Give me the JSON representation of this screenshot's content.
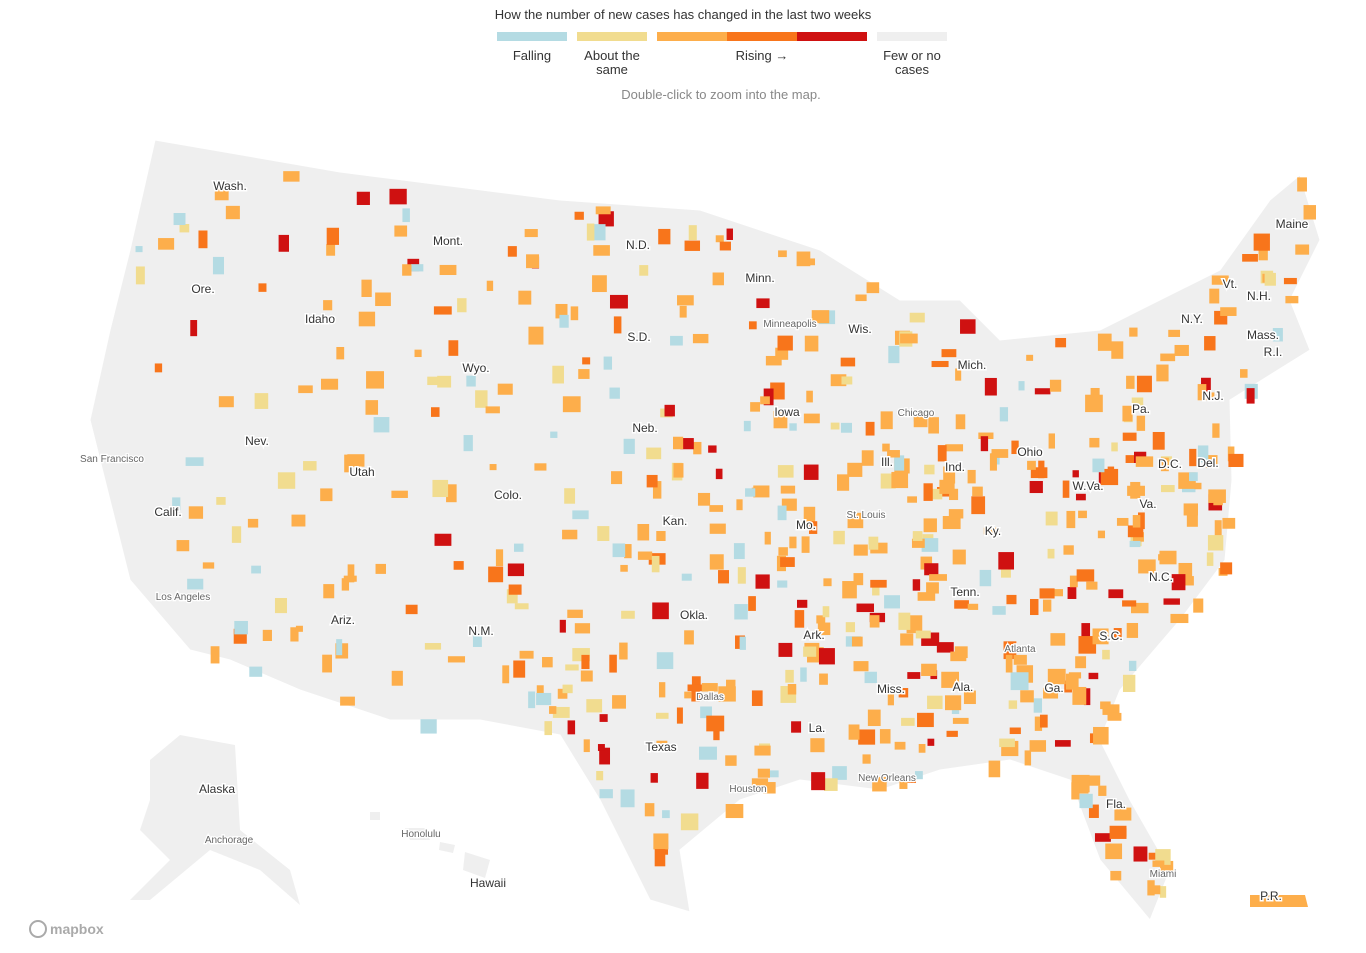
{
  "legend": {
    "title": "How the number of new cases has changed in the last two weeks",
    "items": [
      {
        "label": "Falling",
        "color": "#b4dbe3"
      },
      {
        "label": "About the same",
        "color": "#f1dc8f"
      },
      {
        "label": "Rising →",
        "colors": [
          "#fdae4b",
          "#f8751b",
          "#cf1111"
        ]
      },
      {
        "label": "Few or no cases",
        "color": "#efefef"
      }
    ]
  },
  "hint": "Double-click to zoom into the map.",
  "map": {
    "state_labels": [
      "Wash.",
      "Mont.",
      "N.D.",
      "Minn.",
      "Ore.",
      "Idaho",
      "S.D.",
      "Wis.",
      "Mich.",
      "N.Y.",
      "Vt.",
      "N.H.",
      "Maine",
      "Mass.",
      "R.I.",
      "Wyo.",
      "Nev.",
      "Neb.",
      "Iowa",
      "Pa.",
      "N.J.",
      "Ohio",
      "Ind.",
      "Ill.",
      "Utah",
      "Colo.",
      "Calif.",
      "Kan.",
      "Mo.",
      "W.Va.",
      "D.C.",
      "Del.",
      "Va.",
      "Ky.",
      "N.C.",
      "Tenn.",
      "Okla.",
      "Ariz.",
      "N.M.",
      "Ark.",
      "S.C.",
      "Miss.",
      "Ala.",
      "Ga.",
      "Texas",
      "La.",
      "Fla.",
      "Alaska",
      "Hawaii",
      "P.R."
    ],
    "city_labels": [
      "Minneapolis",
      "Chicago",
      "San Francisco",
      "St. Louis",
      "Los Angeles",
      "Atlanta",
      "Dallas",
      "Houston",
      "New Orleans",
      "Anchorage",
      "Honolulu",
      "Miami"
    ]
  },
  "attribution": "mapbox"
}
